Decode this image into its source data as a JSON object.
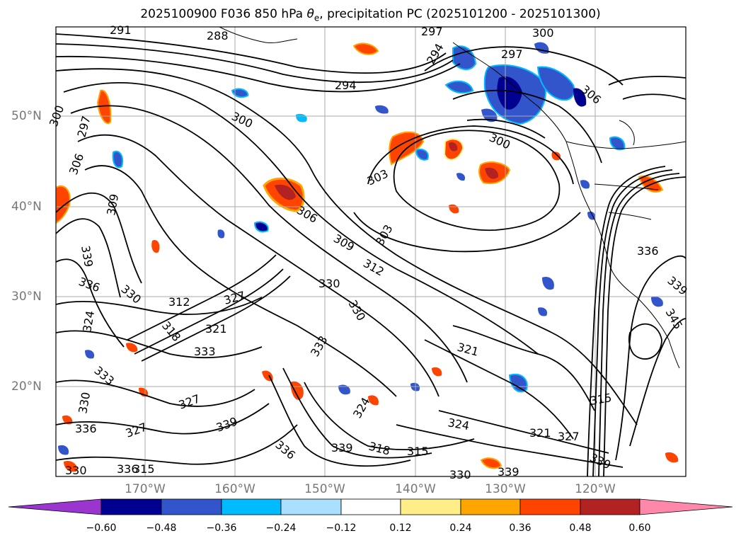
{
  "title": {
    "text_before": "2025100900 F036 850 hPa ",
    "theta_symbol": "θ",
    "theta_subscript": "e",
    "text_after": ", precipitation PC (2025101200 - 2025101300)"
  },
  "axes": {
    "lat_labels": [
      "50°N",
      "40°N",
      "30°N",
      "20°N"
    ],
    "lon_labels": [
      "170°W",
      "160°W",
      "150°W",
      "140°W",
      "130°W",
      "120°W"
    ]
  },
  "colorbar": {
    "ticks": [
      "−0.60",
      "−0.48",
      "−0.36",
      "−0.24",
      "−0.12",
      "0.12",
      "0.24",
      "0.36",
      "0.48",
      "0.60"
    ],
    "colors": {
      "under": "#9b35cf",
      "bins": [
        "#000090",
        "#3355cc",
        "#00bbff",
        "#aadfff",
        "#ffffff",
        "#ffee88",
        "#ffa500",
        "#ff4400",
        "#b22222"
      ],
      "over": "#ff88aa"
    }
  },
  "contour_labels": [
    "291",
    "288",
    "294",
    "297",
    "300",
    "297",
    "294",
    "300",
    "306",
    "297",
    "300",
    "309",
    "303",
    "306",
    "309",
    "303",
    "312",
    "306",
    "300",
    "336",
    "339",
    "336",
    "330",
    "330",
    "330",
    "327",
    "324",
    "318",
    "333",
    "321",
    "339",
    "345",
    "333",
    "333",
    "321",
    "327",
    "324",
    "315",
    "339",
    "327",
    "321",
    "327",
    "324",
    "330",
    "336",
    "318",
    "315",
    "339",
    "336",
    "339",
    "330",
    "330",
    "336",
    "339",
    "312",
    "315"
  ]
}
